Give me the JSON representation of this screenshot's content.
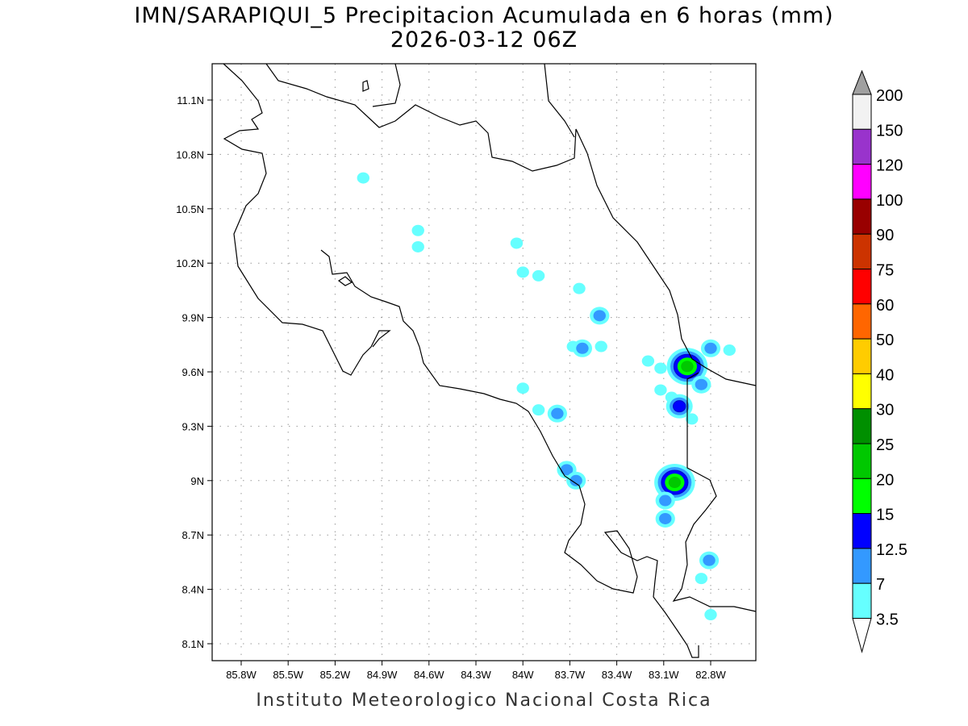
{
  "title": "IMN/SARAPIQUI_5 Precipitacion Acumulada en 6 horas (mm)",
  "subtitle": "2026-03-12 06Z",
  "footer": "Instituto Meteorologico Nacional Costa Rica",
  "lon_ticks": [
    "85.8W",
    "85.5W",
    "85.2W",
    "84.9W",
    "84.6W",
    "84.3W",
    "84W",
    "83.7W",
    "83.4W",
    "83.1W",
    "82.8W"
  ],
  "lat_ticks": [
    "11.1N",
    "10.8N",
    "10.5N",
    "10.2N",
    "9.9N",
    "9.6N",
    "9.3N",
    "9N",
    "8.7N",
    "8.4N",
    "8.1N"
  ],
  "colorbar": {
    "labels": [
      "200",
      "150",
      "120",
      "100",
      "90",
      "75",
      "60",
      "50",
      "40",
      "30",
      "25",
      "20",
      "15",
      "12.5",
      "7",
      "3.5"
    ],
    "colors": [
      "#f2f2f2",
      "#9933cc",
      "#ff00ff",
      "#990000",
      "#cc3300",
      "#ff0000",
      "#ff6600",
      "#ffcc00",
      "#ffff00",
      "#008f00",
      "#00c800",
      "#00ff00",
      "#0000ff",
      "#3399ff",
      "#66ffff"
    ],
    "over_color": "#a0a0a0"
  },
  "rain_cells": [
    {
      "lon": -84.67,
      "lat": 10.38,
      "level": 1
    },
    {
      "lon": -84.67,
      "lat": 10.29,
      "level": 1
    },
    {
      "lon": -85.02,
      "lat": 10.67,
      "level": 1
    },
    {
      "lon": -84.04,
      "lat": 10.31,
      "level": 1
    },
    {
      "lon": -84.0,
      "lat": 10.15,
      "level": 1
    },
    {
      "lon": -83.9,
      "lat": 10.13,
      "level": 1
    },
    {
      "lon": -83.64,
      "lat": 10.06,
      "level": 1
    },
    {
      "lon": -83.51,
      "lat": 9.91,
      "level": 2
    },
    {
      "lon": -83.68,
      "lat": 9.74,
      "level": 1
    },
    {
      "lon": -83.62,
      "lat": 9.73,
      "level": 2
    },
    {
      "lon": -83.5,
      "lat": 9.74,
      "level": 1
    },
    {
      "lon": -83.2,
      "lat": 9.66,
      "level": 1
    },
    {
      "lon": -83.12,
      "lat": 9.62,
      "level": 1
    },
    {
      "lon": -82.98,
      "lat": 9.62,
      "level": 3
    },
    {
      "lon": -82.95,
      "lat": 9.63,
      "level": 5
    },
    {
      "lon": -82.8,
      "lat": 9.73,
      "level": 2
    },
    {
      "lon": -82.68,
      "lat": 9.72,
      "level": 1
    },
    {
      "lon": -82.86,
      "lat": 9.53,
      "level": 2
    },
    {
      "lon": -83.05,
      "lat": 9.46,
      "level": 1
    },
    {
      "lon": -83.0,
      "lat": 9.41,
      "level": 3
    },
    {
      "lon": -82.92,
      "lat": 9.34,
      "level": 1
    },
    {
      "lon": -83.12,
      "lat": 9.5,
      "level": 1
    },
    {
      "lon": -84.0,
      "lat": 9.51,
      "level": 1
    },
    {
      "lon": -83.9,
      "lat": 9.39,
      "level": 1
    },
    {
      "lon": -83.78,
      "lat": 9.37,
      "level": 2
    },
    {
      "lon": -83.72,
      "lat": 9.06,
      "level": 2
    },
    {
      "lon": -83.66,
      "lat": 9.0,
      "level": 2
    },
    {
      "lon": -83.03,
      "lat": 8.99,
      "level": 5
    },
    {
      "lon": -83.09,
      "lat": 8.89,
      "level": 2
    },
    {
      "lon": -83.09,
      "lat": 8.79,
      "level": 2
    },
    {
      "lon": -82.81,
      "lat": 8.56,
      "level": 2
    },
    {
      "lon": -82.86,
      "lat": 8.46,
      "level": 1
    },
    {
      "lon": -82.8,
      "lat": 8.26,
      "level": 1
    }
  ]
}
